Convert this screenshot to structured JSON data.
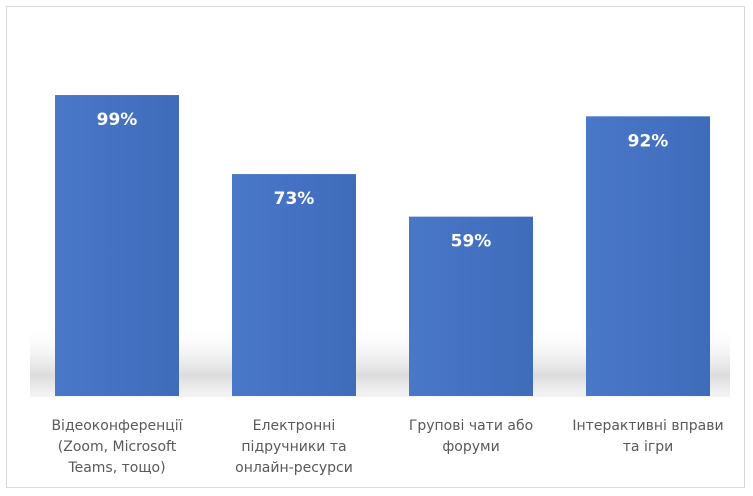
{
  "chart_data": {
    "type": "bar",
    "categories": [
      [
        "Відеоконференції",
        "(Zoom, Microsoft",
        "Teams, тощо)"
      ],
      [
        "Електронні",
        "підручники та",
        "онлайн-ресурси"
      ],
      [
        "Групові чати або",
        "форуми"
      ],
      [
        "Інтерактивні вправи",
        "та ігри"
      ]
    ],
    "values": [
      99,
      73,
      59,
      92
    ],
    "data_labels": [
      "99%",
      "73%",
      "59%",
      "92%"
    ],
    "ylim": [
      0,
      100
    ],
    "grid": false,
    "legend": "none",
    "colors": {
      "bar": "#4472c4",
      "bar_dark": "#3a63ad",
      "label": "#595959",
      "value_label": "#ffffff",
      "border": "#d9d9d9",
      "floor_shadow": "#bfbfbf"
    }
  }
}
